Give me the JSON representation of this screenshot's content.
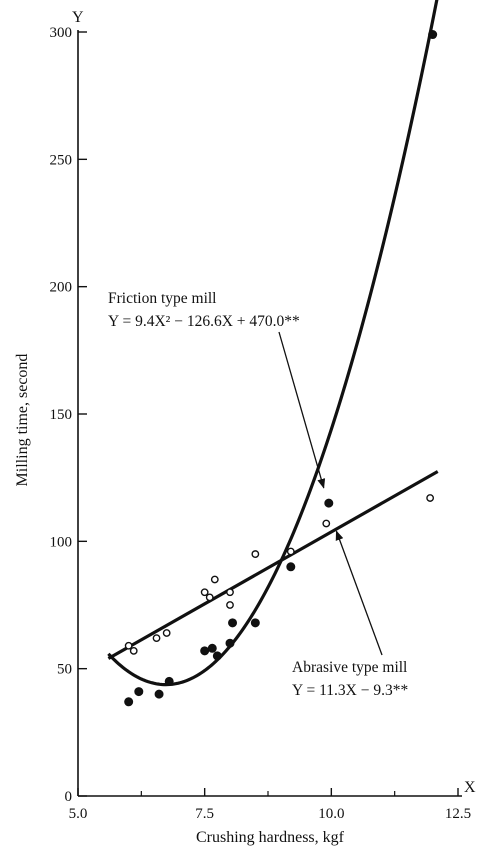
{
  "chart_data": {
    "type": "scatter",
    "xlabel": "Crushing hardness, kgf",
    "ylabel": "Milling time, second",
    "x_axis_letter": "X",
    "y_axis_letter": "Y",
    "xlim": [
      5.0,
      12.5
    ],
    "ylim": [
      0,
      300
    ],
    "x_ticks": [
      "5.0",
      "7.5",
      "10.0",
      "12.5"
    ],
    "x_tick_values": [
      5.0,
      7.5,
      10.0,
      12.5
    ],
    "y_ticks": [
      "0",
      "50",
      "100",
      "150",
      "200",
      "250",
      "300"
    ],
    "y_tick_values": [
      0,
      50,
      100,
      150,
      200,
      250,
      300
    ],
    "grid": false,
    "series": [
      {
        "marker": "filled-circle",
        "points": [
          {
            "x": 6.0,
            "y": 37
          },
          {
            "x": 6.2,
            "y": 41
          },
          {
            "x": 6.6,
            "y": 40
          },
          {
            "x": 6.8,
            "y": 45
          },
          {
            "x": 7.5,
            "y": 57
          },
          {
            "x": 7.65,
            "y": 58
          },
          {
            "x": 7.75,
            "y": 55
          },
          {
            "x": 8.0,
            "y": 60
          },
          {
            "x": 8.05,
            "y": 68
          },
          {
            "x": 8.5,
            "y": 68
          },
          {
            "x": 9.2,
            "y": 90
          },
          {
            "x": 9.95,
            "y": 115
          },
          {
            "x": 12.0,
            "y": 299
          }
        ],
        "fit_range": [
          5.6,
          12.1
        ]
      },
      {
        "marker": "open-circle",
        "points": [
          {
            "x": 6.0,
            "y": 59
          },
          {
            "x": 6.1,
            "y": 57
          },
          {
            "x": 6.55,
            "y": 62
          },
          {
            "x": 6.75,
            "y": 64
          },
          {
            "x": 7.5,
            "y": 80
          },
          {
            "x": 7.6,
            "y": 78
          },
          {
            "x": 7.7,
            "y": 85
          },
          {
            "x": 8.0,
            "y": 80
          },
          {
            "x": 8.0,
            "y": 75
          },
          {
            "x": 8.5,
            "y": 95
          },
          {
            "x": 9.2,
            "y": 96
          },
          {
            "x": 9.9,
            "y": 107
          },
          {
            "x": 11.95,
            "y": 117
          }
        ],
        "fit_range": [
          5.6,
          12.1
        ]
      }
    ],
    "annotations": [
      {
        "lines": [
          "Friction type mill",
          "Y = 9.4X² − 126.6X + 470.0**"
        ],
        "arrow_target": {
          "x": 9.85,
          "y": 121
        }
      },
      {
        "lines": [
          "Abrasive type mill",
          "Y = 11.3X − 9.3**"
        ],
        "arrow_target": {
          "x": 10.1,
          "y": 104
        }
      }
    ]
  }
}
